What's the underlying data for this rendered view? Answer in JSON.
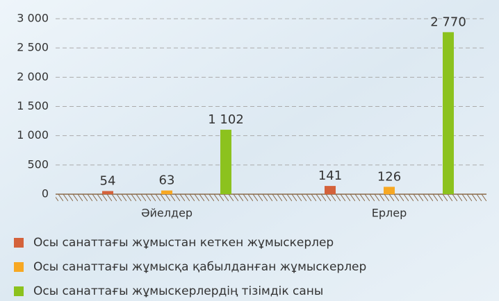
{
  "chart_data": {
    "type": "bar",
    "categories": [
      "Әйелдер",
      "Ерлер"
    ],
    "series": [
      {
        "name": "Осы санаттағы жұмыстан кеткен жұмыскерлер",
        "color": "#d4623b",
        "values": [
          54,
          141
        ]
      },
      {
        "name": "Осы санаттағы жұмысқа қабылданған жұмыскерлер",
        "color": "#f7a823",
        "values": [
          63,
          126
        ]
      },
      {
        "name": "Осы санаттағы жұмыскерлердің тізімдік саны",
        "color": "#8cc21e",
        "values": [
          1102,
          2770
        ],
        "value_labels": [
          "1 102",
          "2 770"
        ]
      }
    ],
    "ylim": [
      0,
      3000
    ],
    "yticks": [
      0,
      500,
      {
        "value": 1000,
        "label": "1 000"
      },
      {
        "value": 1500,
        "label": "1 500"
      },
      {
        "value": 2000,
        "label": "2 000"
      },
      {
        "value": 2500,
        "label": "2 500"
      },
      {
        "value": 3000,
        "label": "3 000"
      }
    ],
    "grid": true,
    "legend": "bottom"
  }
}
